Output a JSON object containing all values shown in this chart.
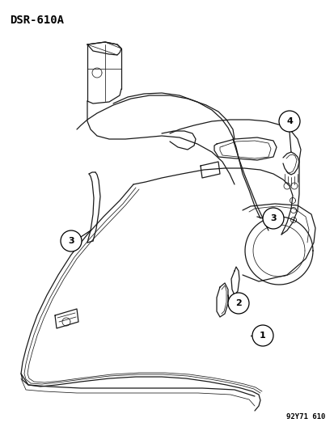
{
  "title": "DSR-610A",
  "subtitle": "92Y71 610",
  "background_color": "#ffffff",
  "text_color": "#000000",
  "line_color": "#1a1a1a",
  "title_fontsize": 10,
  "subtitle_fontsize": 6.5,
  "callout_fontsize": 8,
  "callout_r": 0.02
}
